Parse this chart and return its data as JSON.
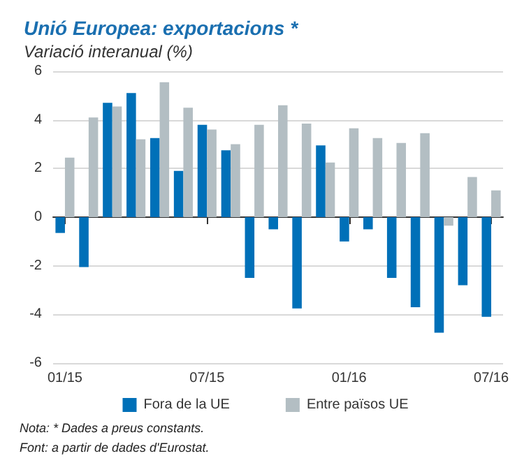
{
  "chart_data": {
    "type": "bar",
    "title": "Unió Europea: exportacions *",
    "subtitle": "Variació interanual (%)",
    "categories": [
      "01/15",
      null,
      null,
      null,
      null,
      null,
      "07/15",
      null,
      null,
      null,
      null,
      null,
      "01/16",
      null,
      null,
      null,
      null,
      null,
      "07/16"
    ],
    "series": [
      {
        "name": "Fora de la UE",
        "color": "#0070b8",
        "values": [
          -0.65,
          -2.05,
          4.7,
          5.1,
          3.25,
          1.9,
          3.8,
          2.75,
          -2.5,
          -0.5,
          -3.75,
          2.95,
          -1.0,
          -0.5,
          -2.5,
          -3.7,
          -4.75,
          -2.8,
          -4.1
        ]
      },
      {
        "name": "Entre països UE",
        "color": "#b3bec3",
        "values": [
          2.45,
          4.1,
          4.55,
          3.2,
          5.55,
          4.5,
          3.6,
          3.0,
          3.8,
          4.6,
          3.85,
          2.25,
          3.65,
          3.25,
          3.05,
          3.45,
          -0.35,
          1.65,
          1.1
        ]
      }
    ],
    "ylim": [
      -6,
      6
    ],
    "yticks": [
      -6,
      -4,
      -2,
      0,
      2,
      4,
      6
    ],
    "grid": "y",
    "legend": "bottom",
    "annotations": [
      "Nota: * Dades a preus constants.",
      "Font: a partir de dades d'Eurostat."
    ]
  }
}
